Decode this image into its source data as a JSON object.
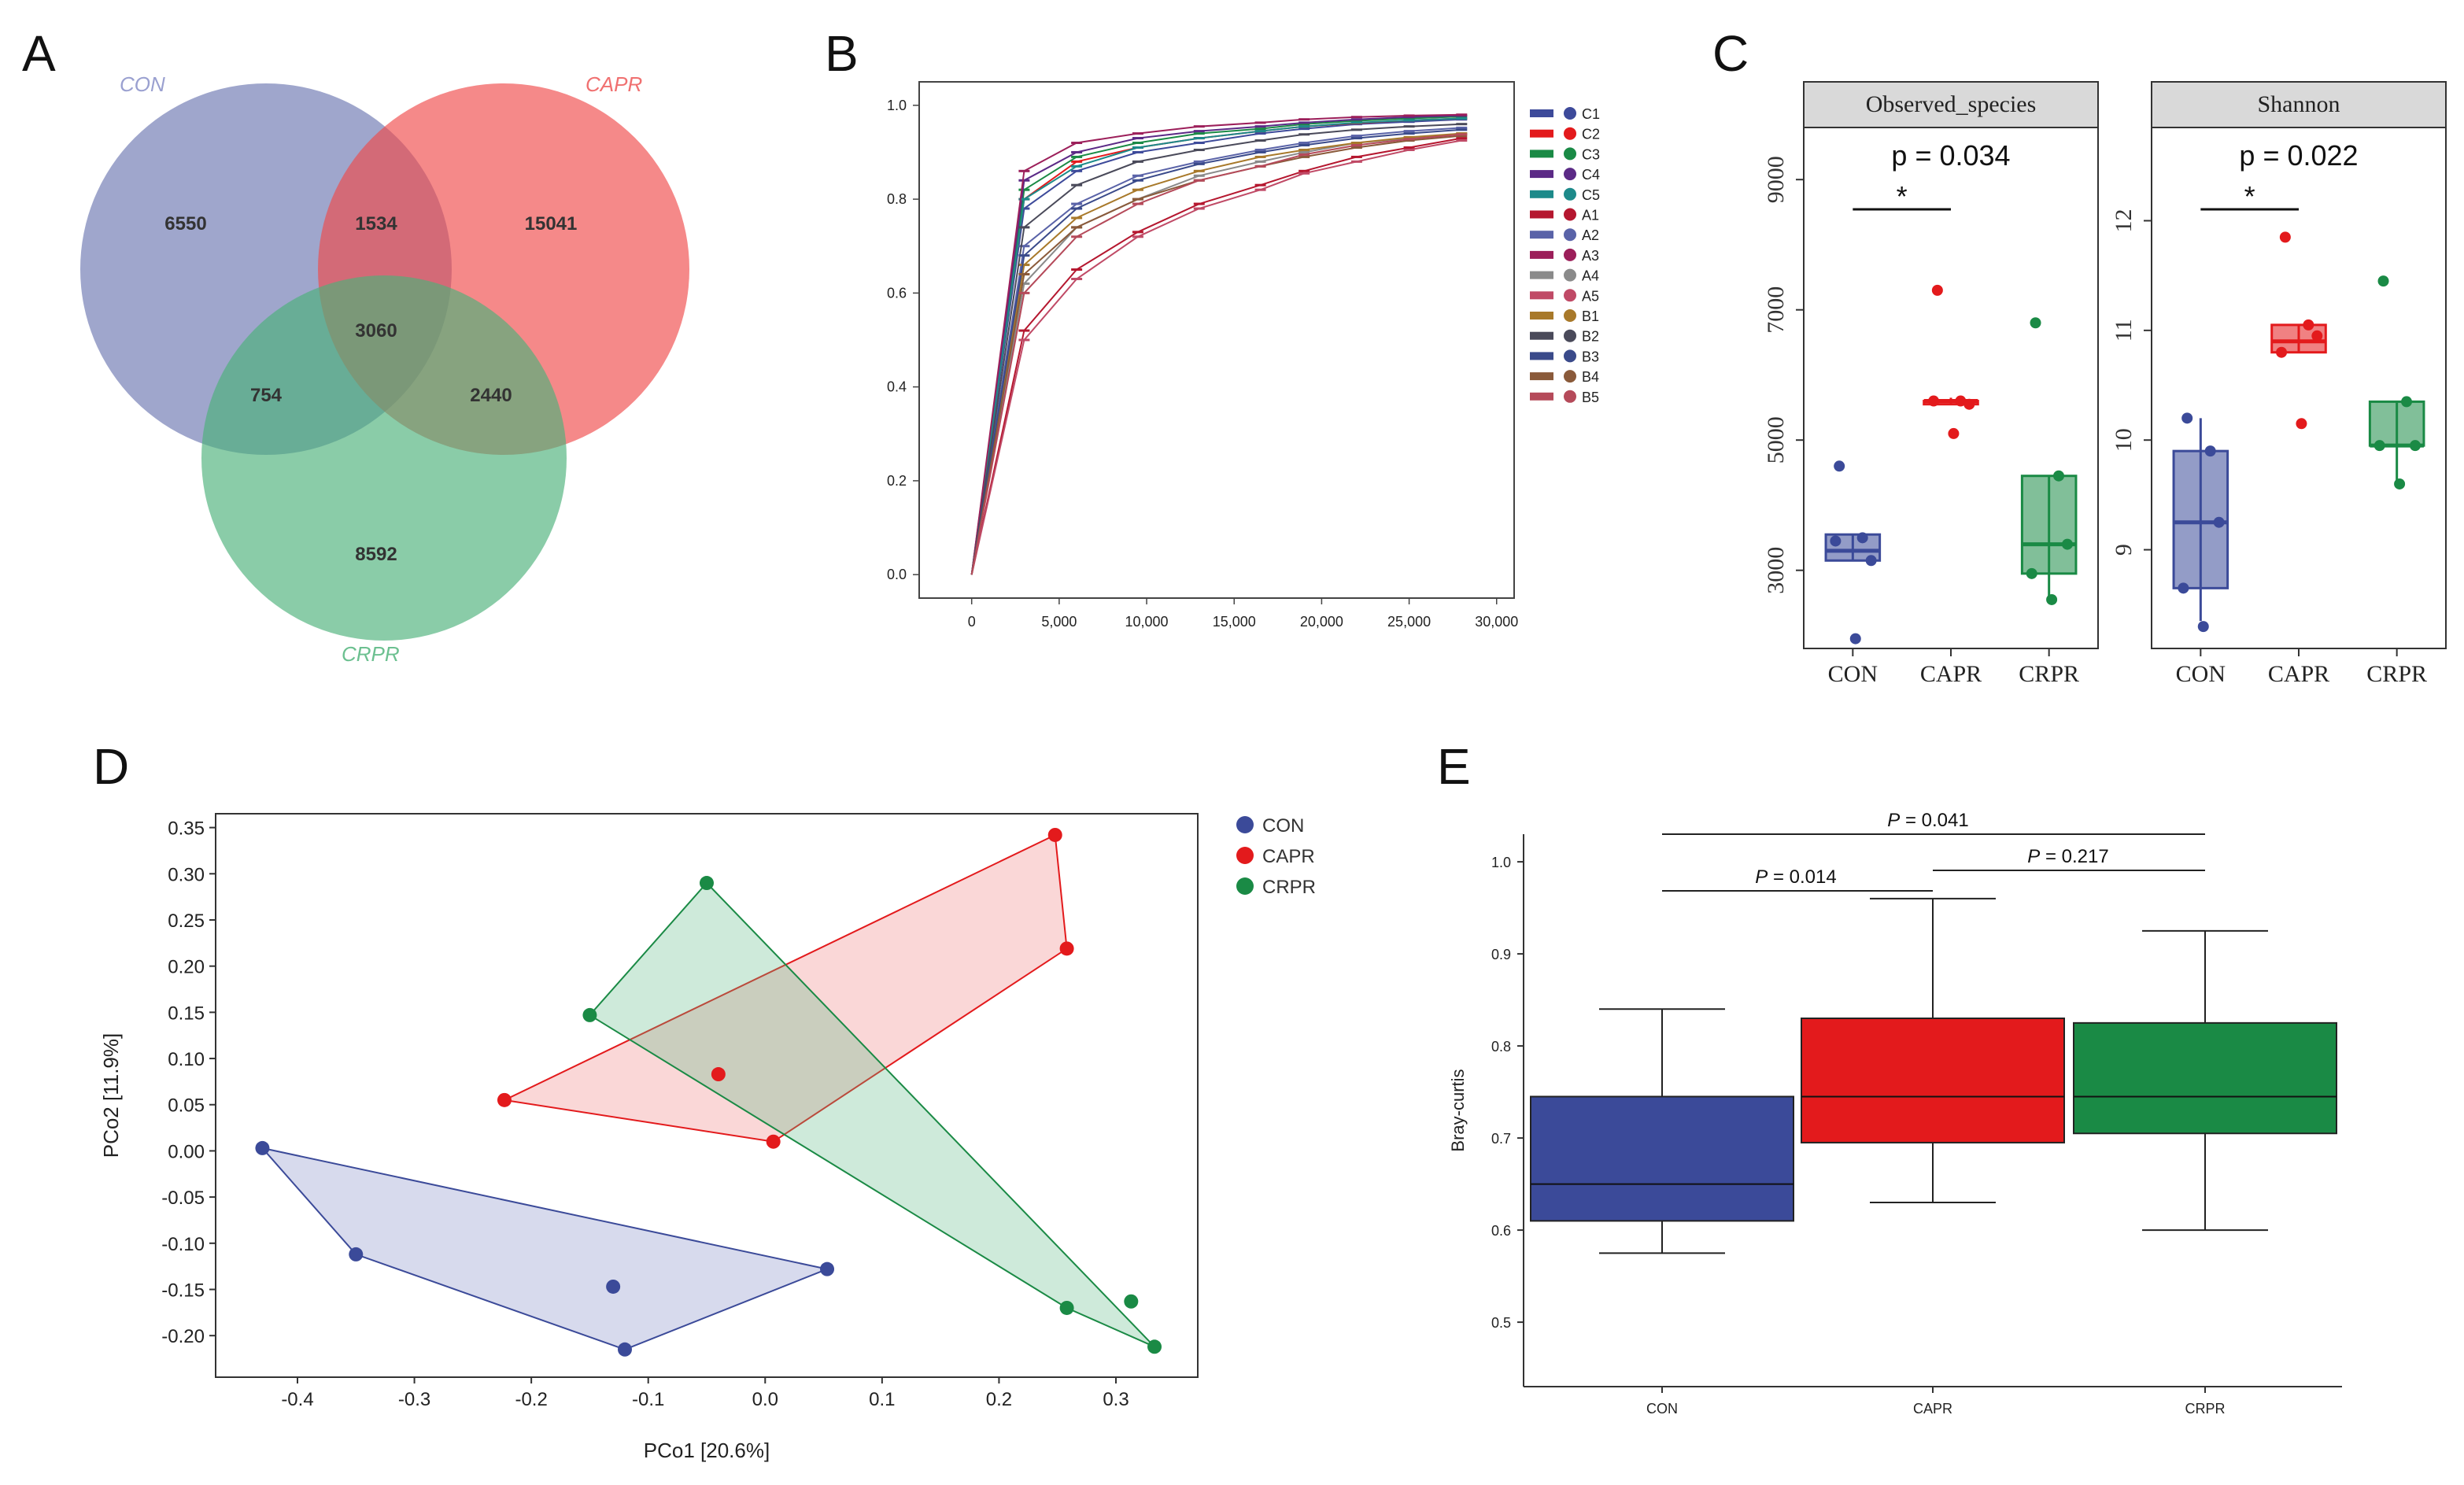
{
  "panels": {
    "A": {
      "label": "A"
    },
    "B": {
      "label": "B"
    },
    "C": {
      "label": "C"
    },
    "D": {
      "label": "D"
    },
    "E": {
      "label": "E"
    }
  },
  "colors": {
    "CON": "#3b4a99",
    "CAPR": "#e31a1c",
    "CRPR": "#1a8a45",
    "venn_con": "#6b76b0",
    "venn_capr": "#f04a4a",
    "venn_crpr": "#4cb07a"
  },
  "chart_data": [
    {
      "panel": "A",
      "type": "venn",
      "sets": [
        "CON",
        "CAPR",
        "CRPR"
      ],
      "regions": {
        "CON_only": 6550,
        "CAPR_only": 15041,
        "CRPR_only": 8592,
        "CON_CAPR": 1534,
        "CON_CRPR": 754,
        "CAPR_CRPR": 2440,
        "all": 3060
      },
      "region_labels": {
        "CON_only": "6550",
        "CAPR_only": "15041",
        "CRPR_only": "8592",
        "CON_CAPR": "1534",
        "CON_CRPR": "754",
        "CAPR_CRPR": "2440",
        "all": "3060"
      }
    },
    {
      "panel": "B",
      "type": "line",
      "title": "",
      "xlabel": "",
      "ylabel": "",
      "xlim": [
        -3000,
        31000
      ],
      "ylim": [
        -0.05,
        1.05
      ],
      "xticks": [
        0,
        5000,
        10000,
        15000,
        20000,
        25000,
        30000
      ],
      "xtick_labels": [
        "0",
        "5,000",
        "10,000",
        "15,000",
        "20,000",
        "25,000",
        "30,000"
      ],
      "yticks": [
        0.0,
        0.2,
        0.4,
        0.6,
        0.8,
        1.0
      ],
      "ytick_labels": [
        "0.0",
        "0.2",
        "0.4",
        "0.6",
        "0.8",
        "1.0"
      ],
      "x": [
        0,
        3000,
        6000,
        9500,
        13000,
        16500,
        19000,
        22000,
        25000,
        28000
      ],
      "series": [
        {
          "name": "C1",
          "color": "#3d4a9a",
          "values": [
            0.0,
            0.78,
            0.86,
            0.9,
            0.92,
            0.94,
            0.95,
            0.96,
            0.965,
            0.97
          ]
        },
        {
          "name": "C2",
          "color": "#e31a1c",
          "values": [
            0.0,
            0.8,
            0.88,
            0.91,
            0.93,
            0.945,
            0.955,
            0.962,
            0.968,
            0.972
          ]
        },
        {
          "name": "C3",
          "color": "#1a8a45",
          "values": [
            0.0,
            0.82,
            0.89,
            0.92,
            0.94,
            0.95,
            0.96,
            0.967,
            0.972,
            0.976
          ]
        },
        {
          "name": "C4",
          "color": "#5b2a86",
          "values": [
            0.0,
            0.84,
            0.9,
            0.93,
            0.945,
            0.955,
            0.963,
            0.97,
            0.975,
            0.978
          ]
        },
        {
          "name": "C5",
          "color": "#1d8a8a",
          "values": [
            0.0,
            0.8,
            0.87,
            0.91,
            0.93,
            0.945,
            0.955,
            0.963,
            0.968,
            0.972
          ]
        },
        {
          "name": "A1",
          "color": "#b5172f",
          "values": [
            0.0,
            0.52,
            0.65,
            0.73,
            0.79,
            0.83,
            0.86,
            0.89,
            0.91,
            0.93
          ]
        },
        {
          "name": "A2",
          "color": "#5a63a8",
          "values": [
            0.0,
            0.7,
            0.79,
            0.85,
            0.88,
            0.905,
            0.92,
            0.935,
            0.945,
            0.952
          ]
        },
        {
          "name": "A3",
          "color": "#9c1f5a",
          "values": [
            0.0,
            0.86,
            0.92,
            0.94,
            0.955,
            0.963,
            0.97,
            0.975,
            0.978,
            0.98
          ]
        },
        {
          "name": "A4",
          "color": "#8a8a8a",
          "values": [
            0.0,
            0.62,
            0.74,
            0.8,
            0.85,
            0.88,
            0.9,
            0.92,
            0.93,
            0.94
          ]
        },
        {
          "name": "A5",
          "color": "#c04a66",
          "values": [
            0.0,
            0.5,
            0.63,
            0.72,
            0.78,
            0.82,
            0.855,
            0.88,
            0.905,
            0.925
          ]
        },
        {
          "name": "B1",
          "color": "#a8792a",
          "values": [
            0.0,
            0.66,
            0.76,
            0.82,
            0.86,
            0.89,
            0.905,
            0.92,
            0.932,
            0.94
          ]
        },
        {
          "name": "B2",
          "color": "#4a4a5a",
          "values": [
            0.0,
            0.74,
            0.83,
            0.88,
            0.905,
            0.925,
            0.938,
            0.948,
            0.955,
            0.96
          ]
        },
        {
          "name": "B3",
          "color": "#3a4a8a",
          "values": [
            0.0,
            0.68,
            0.78,
            0.84,
            0.875,
            0.9,
            0.915,
            0.93,
            0.94,
            0.948
          ]
        },
        {
          "name": "B4",
          "color": "#8a5a3a",
          "values": [
            0.0,
            0.64,
            0.74,
            0.8,
            0.84,
            0.87,
            0.89,
            0.91,
            0.925,
            0.935
          ]
        },
        {
          "name": "B5",
          "color": "#b54a5a",
          "values": [
            0.0,
            0.6,
            0.72,
            0.79,
            0.84,
            0.87,
            0.895,
            0.915,
            0.928,
            0.938
          ]
        }
      ]
    },
    {
      "panel": "C1",
      "type": "box",
      "title": "Observed_species",
      "annotation": "p = 0.034",
      "sig": "*",
      "ylim": [
        1800,
        9800
      ],
      "yticks": [
        3000,
        5000,
        7000,
        9000
      ],
      "ytick_labels": [
        "3000",
        "5000",
        "7000",
        "9000"
      ],
      "categories": [
        "CON",
        "CAPR",
        "CRPR"
      ],
      "boxes": [
        {
          "q1": 3150,
          "median": 3300,
          "q3": 3550,
          "whisker_low": 3150,
          "whisker_high": 3550
        },
        {
          "q1": 5550,
          "median": 5600,
          "q3": 5600,
          "whisker_low": 5550,
          "whisker_high": 5650
        },
        {
          "q1": 2950,
          "median": 3400,
          "q3": 4450,
          "whisker_low": 2500,
          "whisker_high": 4450
        }
      ],
      "points": [
        [
          4600,
          3500,
          3150,
          3450,
          1950
        ],
        [
          7300,
          5600,
          5550,
          5600,
          5100
        ],
        [
          6800,
          4450,
          3400,
          2950,
          2550
        ]
      ]
    },
    {
      "panel": "C2",
      "type": "box",
      "title": "Shannon",
      "annotation": "p = 0.022",
      "sig": "*",
      "ylim": [
        8.1,
        12.85
      ],
      "yticks": [
        9,
        10,
        11,
        12
      ],
      "ytick_labels": [
        "9",
        "10",
        "11",
        "12"
      ],
      "categories": [
        "CON",
        "CAPR",
        "CRPR"
      ],
      "boxes": [
        {
          "q1": 8.65,
          "median": 9.25,
          "q3": 9.9,
          "whisker_low": 8.35,
          "whisker_high": 10.2
        },
        {
          "q1": 10.8,
          "median": 10.9,
          "q3": 11.05,
          "whisker_low": 10.8,
          "whisker_high": 11.05
        },
        {
          "q1": 9.95,
          "median": 9.95,
          "q3": 10.35,
          "whisker_low": 9.6,
          "whisker_high": 10.35
        }
      ],
      "points": [
        [
          10.2,
          9.9,
          9.25,
          8.65,
          8.3
        ],
        [
          11.85,
          11.05,
          10.95,
          10.8,
          10.15
        ],
        [
          11.45,
          10.35,
          9.95,
          9.95,
          9.6
        ]
      ]
    },
    {
      "panel": "D",
      "type": "scatter",
      "xlabel": "PCo1 [20.6%]",
      "ylabel": "PCo2 [11.9%]",
      "xlim": [
        -0.47,
        0.37
      ],
      "ylim": [
        -0.245,
        0.365
      ],
      "xticks": [
        -0.4,
        -0.3,
        -0.2,
        -0.1,
        0.0,
        0.1,
        0.2,
        0.3
      ],
      "xtick_labels": [
        "-0.4",
        "-0.3",
        "-0.2",
        "-0.1",
        "0.0",
        "0.1",
        "0.2",
        "0.3"
      ],
      "yticks": [
        -0.2,
        -0.15,
        -0.1,
        -0.05,
        0.0,
        0.05,
        0.1,
        0.15,
        0.2,
        0.25,
        0.3,
        0.35
      ],
      "ytick_labels": [
        "-0.20",
        "-0.15",
        "-0.10",
        "-0.05",
        "0.00",
        "0.05",
        "0.10",
        "0.15",
        "0.20",
        "0.25",
        "0.30",
        "0.35"
      ],
      "legend": [
        "CON",
        "CAPR",
        "CRPR"
      ],
      "series": [
        {
          "name": "CON",
          "points": [
            [
              -0.43,
              0.003
            ],
            [
              -0.35,
              -0.112
            ],
            [
              -0.13,
              -0.147
            ],
            [
              -0.12,
              -0.215
            ],
            [
              0.053,
              -0.128
            ]
          ],
          "hull": [
            [
              -0.43,
              0.003
            ],
            [
              0.053,
              -0.128
            ],
            [
              -0.12,
              -0.215
            ],
            [
              -0.35,
              -0.112
            ]
          ]
        },
        {
          "name": "CAPR",
          "points": [
            [
              0.248,
              0.342
            ],
            [
              0.258,
              0.219
            ],
            [
              -0.04,
              0.083
            ],
            [
              -0.223,
              0.055
            ],
            [
              0.007,
              0.01
            ]
          ],
          "hull": [
            [
              -0.223,
              0.055
            ],
            [
              0.248,
              0.342
            ],
            [
              0.258,
              0.219
            ],
            [
              0.007,
              0.01
            ]
          ]
        },
        {
          "name": "CRPR",
          "points": [
            [
              -0.05,
              0.29
            ],
            [
              -0.15,
              0.147
            ],
            [
              0.258,
              -0.17
            ],
            [
              0.313,
              -0.163
            ],
            [
              0.333,
              -0.212
            ]
          ],
          "hull": [
            [
              -0.05,
              0.29
            ],
            [
              0.333,
              -0.212
            ],
            [
              0.258,
              -0.17
            ],
            [
              -0.15,
              0.147
            ]
          ]
        }
      ]
    },
    {
      "panel": "E",
      "type": "box",
      "ylabel": "Bray-curtis",
      "ylim": [
        0.43,
        1.03
      ],
      "yticks": [
        0.5,
        0.6,
        0.7,
        0.8,
        0.9,
        1.0
      ],
      "ytick_labels": [
        "0.5",
        "0.6",
        "0.7",
        "0.8",
        "0.9",
        "1.0"
      ],
      "categories": [
        "CON",
        "CAPR",
        "CRPR"
      ],
      "boxes": [
        {
          "q1": 0.61,
          "median": 0.65,
          "q3": 0.745,
          "whisker_low": 0.575,
          "whisker_high": 0.84
        },
        {
          "q1": 0.695,
          "median": 0.745,
          "q3": 0.83,
          "whisker_low": 0.63,
          "whisker_high": 0.96
        },
        {
          "q1": 0.705,
          "median": 0.745,
          "q3": 0.825,
          "whisker_low": 0.6,
          "whisker_high": 0.925
        }
      ],
      "comparisons": [
        {
          "pair": [
            "CON",
            "CRPR"
          ],
          "prefix": "P",
          "text": " = 0.041"
        },
        {
          "pair": [
            "CON",
            "CAPR"
          ],
          "prefix": "P",
          "text": " = 0.014"
        },
        {
          "pair": [
            "CAPR",
            "CRPR"
          ],
          "prefix": "P",
          "text": " = 0.217"
        }
      ]
    }
  ]
}
